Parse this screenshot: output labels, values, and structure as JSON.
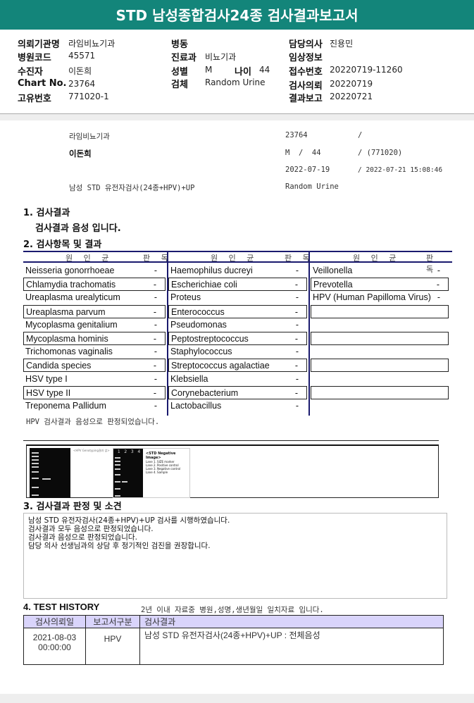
{
  "title": "STD 남성종합검사24종 검사결과보고서",
  "header_info": {
    "col1": [
      {
        "label": "의뢰기관명",
        "value": "라임비뇨기과"
      },
      {
        "label": "병원코드",
        "value": "45571"
      },
      {
        "label": "수진자",
        "value": "이돈희"
      },
      {
        "label": "Chart No.",
        "value": "23764"
      },
      {
        "label": "고유번호",
        "value": "771020-1"
      }
    ],
    "col2": [
      {
        "label": "병동",
        "value": ""
      },
      {
        "label": "진료과",
        "value": "비뇨기과"
      },
      {
        "label": "성별",
        "value": "M"
      },
      {
        "label": "검체",
        "value": "Random Urine"
      }
    ],
    "age_label": "나이",
    "age_value": "44",
    "col3": [
      {
        "label": "담당의사",
        "value": "진용민"
      },
      {
        "label": "임상정보",
        "value": ""
      },
      {
        "label": "접수번호",
        "value": "20220719-11260"
      },
      {
        "label": "검사의뢰",
        "value": "20220719"
      },
      {
        "label": "결과보고",
        "value": "20220721"
      }
    ]
  },
  "summary": {
    "hospital": "라임비뇨기과",
    "patient": "이돈희",
    "test": "남성 STD 유전자검사(24종+HPV)+UP",
    "chart": "23764",
    "chart_sep": "/",
    "sex_age": "M  /  44",
    "id": "/ (771020)",
    "req_date": "2022-07-19",
    "report_dt": "/ 2022-07-21 15:08:46",
    "specimen": "Random Urine"
  },
  "section1": {
    "title": "1. 검사결과",
    "text": "검사결과 음성 입니다."
  },
  "section2": {
    "title": "2. 검사항목 및 결과",
    "col_header": "원 인 균",
    "result_header": "판 독",
    "columns": [
      [
        [
          "Neisseria gonorrhoeae",
          "-"
        ],
        [
          "Chlamydia trachomatis",
          "-"
        ],
        [
          "Ureaplasma urealyticum",
          "-"
        ],
        [
          "Ureaplasma parvum",
          "-"
        ],
        [
          "Mycoplasma genitalium",
          "-"
        ],
        [
          "Mycoplasma hominis",
          "-"
        ],
        [
          "Trichomonas vaginalis",
          "-"
        ],
        [
          "Candida species",
          "-"
        ],
        [
          "HSV type I",
          "-"
        ],
        [
          "HSV type II",
          "-"
        ],
        [
          "Treponema Pallidum",
          "-"
        ]
      ],
      [
        [
          "Haemophilus ducreyi",
          "-"
        ],
        [
          "Escherichiae coli",
          "-"
        ],
        [
          "Proteus",
          "-"
        ],
        [
          "Enterococcus",
          "-"
        ],
        [
          "Pseudomonas",
          "-"
        ],
        [
          "Peptostreptococcus",
          "-"
        ],
        [
          "Staphylococcus",
          "-"
        ],
        [
          "Streptococcus agalactiae",
          "-"
        ],
        [
          "Klebsiella",
          "-"
        ],
        [
          "Corynebacterium",
          "-"
        ],
        [
          "Lactobacillus",
          "-"
        ]
      ],
      [
        [
          "Veillonella",
          "-"
        ],
        [
          "Prevotella",
          "-"
        ],
        [
          "HPV (Human Papilloma Virus)",
          "-"
        ],
        [
          "",
          ""
        ],
        [
          "",
          ""
        ],
        [
          "",
          ""
        ],
        [
          "",
          ""
        ],
        [
          "",
          ""
        ],
        [
          "",
          ""
        ],
        [
          "",
          ""
        ]
      ]
    ],
    "note": "HPV 검사결과 음성으로 판정되었습니다."
  },
  "gel": {
    "caption1": "<HPV Genotyping결과 없>",
    "caption2": "<STD Negative Image>",
    "lanes": [
      "1",
      "2",
      "3",
      "4"
    ],
    "legend": [
      "Lane 1. SIZE marker",
      "Lane 2. Positive control",
      "Lane 3. Negative control",
      "Lane 4. Sample"
    ]
  },
  "section3": {
    "title": "3. 검사결과 판정 및 소견",
    "lines": [
      "남성 STD 유전자검사(24종+HPV)+UP 검사를 시행하였습니다.",
      "검사결과 모두 음성으로 판정되었습니다.",
      "검사결과 음성으로 판정되었습니다.",
      "담당 의사 선생님과의 상담 후 정기적인 검진을 권장합니다."
    ]
  },
  "section4": {
    "title": "4. TEST HISTORY",
    "note": "2년 이내 자료중 병원,성명,생년월일 일치자료 입니다.",
    "headers": [
      "검사의뢰일",
      "보고서구분",
      "검사결과"
    ],
    "rows": [
      {
        "date": "2021-08-03",
        "time": "00:00:00",
        "type": "HPV",
        "result": "남성 STD 유전자검사(24종+HPV)+UP : 전체음성"
      }
    ]
  },
  "colors": {
    "header": "#13857a",
    "table_line": "#1a1a6e",
    "history_header": "#d9d4fb"
  }
}
